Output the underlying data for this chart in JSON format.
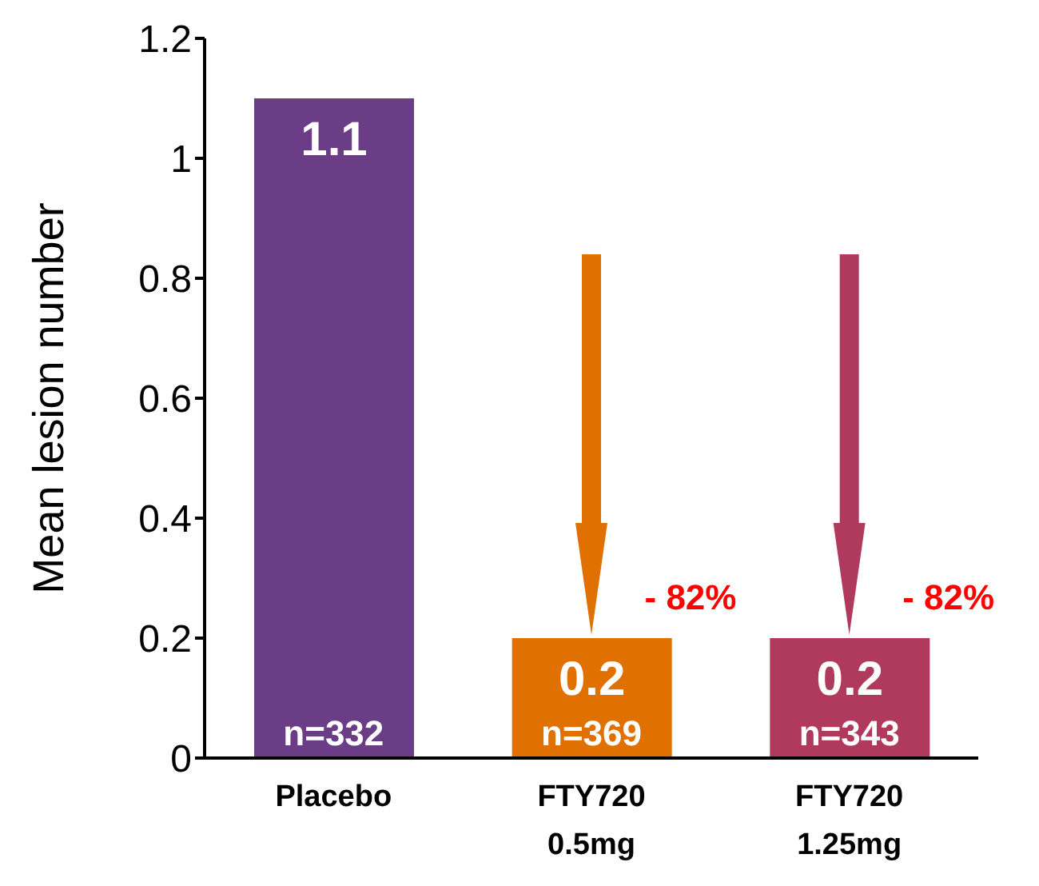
{
  "chart_data": {
    "type": "bar",
    "ylabel": "Mean lesion number",
    "categories": [
      "Placebo",
      "FTY720\n0.5mg",
      "FTY720\n1.25mg"
    ],
    "values": [
      1.1,
      0.2,
      0.2
    ],
    "colors": [
      "#6b3d87",
      "#e07000",
      "#b03a5e"
    ],
    "ylim": [
      0,
      1.2
    ],
    "yticks": [
      0,
      0.2,
      0.4,
      0.6,
      0.8,
      1,
      1.2
    ],
    "data_labels": true,
    "annotations": [
      {
        "text": "n=332",
        "x": "Placebo",
        "y": 0
      },
      {
        "text": "n=369",
        "x": "FTY720\n0.5mg",
        "y": 0
      },
      {
        "text": "n=343",
        "x": "FTY720\n1.25mg",
        "y": 0
      },
      {
        "text": "- 82%",
        "x": "FTY720\n0.5mg",
        "y": 0.2
      },
      {
        "text": "- 82%",
        "x": "FTY720\n1.25mg",
        "y": 0.2
      }
    ]
  }
}
